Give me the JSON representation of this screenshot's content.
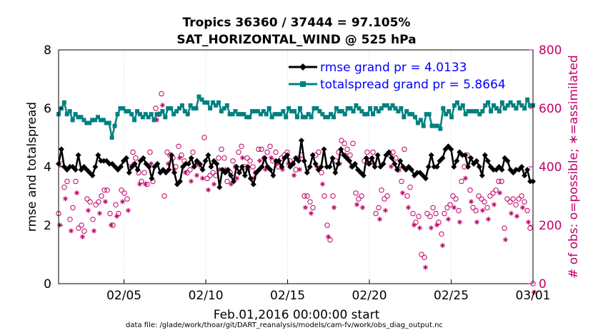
{
  "chart_data": {
    "type": "line",
    "title": "Tropics 36360 / 37444 = 97.105%",
    "subtitle": "SAT_HORIZONTAL_WIND @ 525 hPa",
    "xlabel": "Feb.01,2016 00:00:00 start",
    "ylabel_left": "rmse and totalspread",
    "ylabel_right": "# of obs: o=possible; ∗=assimilated",
    "footnote": "data file: /glade/work/thoar/git/DART_reanalysis/models/cam-fv/work/obs_diag_output.nc",
    "x_range_days": [
      1,
      30
    ],
    "x_ticks": [
      {
        "day": 5,
        "label": "02/05"
      },
      {
        "day": 10,
        "label": "02/10"
      },
      {
        "day": 15,
        "label": "02/15"
      },
      {
        "day": 20,
        "label": "02/20"
      },
      {
        "day": 25,
        "label": "02/25"
      },
      {
        "day": 30,
        "label": "03/01"
      }
    ],
    "ylim_left": [
      0,
      8
    ],
    "y_ticks_left": [
      0,
      2,
      4,
      6,
      8
    ],
    "ylim_right": [
      0,
      800
    ],
    "y_ticks_right": [
      0,
      200,
      400,
      600,
      800
    ],
    "legend_position": "top-right",
    "grid": "vertical dotted at x ticks",
    "colors": {
      "rmse": "#000000",
      "totalspread": "#008080",
      "obs": "#c0006a",
      "right_axis": "#c0006a"
    },
    "series": [
      {
        "name": "rmse grand pr = 4.0133",
        "axis": "left",
        "values": [
          4.1,
          4.6,
          4.0,
          3.9,
          4.0,
          4.0,
          3.9,
          4.4,
          3.9,
          4.0,
          3.9,
          3.8,
          3.7,
          4.0,
          4.4,
          4.2,
          4.2,
          4.2,
          4.1,
          4.1,
          4.0,
          3.9,
          4.0,
          4.2,
          4.3,
          3.8,
          4.0,
          4.1,
          3.9,
          4.2,
          4.3,
          4.1,
          4.0,
          3.6,
          4.0,
          4.1,
          3.8,
          3.9,
          3.8,
          3.9,
          4.4,
          3.8,
          3.4,
          3.5,
          4.0,
          4.1,
          4.1,
          4.3,
          4.0,
          4.2,
          4.1,
          3.9,
          4.2,
          4.4,
          4.0,
          4.2,
          4.1,
          3.3,
          3.9,
          3.8,
          3.9,
          3.7,
          3.5,
          4.0,
          3.8,
          4.0,
          3.7,
          4.0,
          3.6,
          3.4,
          3.8,
          3.9,
          4.0,
          4.3,
          4.0,
          3.9,
          3.7,
          4.2,
          4.2,
          4.0,
          4.3,
          4.4,
          4.0,
          4.1,
          4.3,
          4.2,
          4.9,
          4.2,
          3.8,
          4.0,
          4.4,
          4.1,
          3.9,
          4.0,
          4.6,
          4.0,
          4.0,
          4.3,
          3.8,
          4.1,
          4.6,
          4.4,
          4.3,
          4.2,
          4.0,
          4.1,
          3.9,
          3.8,
          3.7,
          4.3,
          4.1,
          4.3,
          4.0,
          4.4,
          4.0,
          4.1,
          4.4,
          4.5,
          4.3,
          4.1,
          3.9,
          4.2,
          4.0,
          3.9,
          4.0,
          3.9,
          3.7,
          3.8,
          3.8,
          3.7,
          3.6,
          4.0,
          4.4,
          4.0,
          4.0,
          4.2,
          4.3,
          4.6,
          4.7,
          4.6,
          4.0,
          4.2,
          4.5,
          4.4,
          4.4,
          4.0,
          4.3,
          4.1,
          4.2,
          4.0,
          3.7,
          4.4,
          4.2,
          4.0,
          3.9,
          3.9,
          4.0,
          3.9,
          4.3,
          4.2,
          3.9,
          3.8,
          3.9,
          3.9,
          4.0,
          3.7,
          3.9,
          3.5,
          3.5
        ]
      },
      {
        "name": "totalspread grand pr = 5.8664",
        "axis": "left",
        "values": [
          5.8,
          6.0,
          6.2,
          5.8,
          5.9,
          5.6,
          5.8,
          5.7,
          5.7,
          5.6,
          5.5,
          5.5,
          5.6,
          5.6,
          5.7,
          5.6,
          5.6,
          5.5,
          5.5,
          5.0,
          5.4,
          5.8,
          6.0,
          6.0,
          5.9,
          5.9,
          5.8,
          5.6,
          5.9,
          5.8,
          5.7,
          5.8,
          5.7,
          5.8,
          5.6,
          5.8,
          5.8,
          5.9,
          5.7,
          6.0,
          6.0,
          5.8,
          5.9,
          6.0,
          6.1,
          5.9,
          5.8,
          6.1,
          6.0,
          6.0,
          6.4,
          6.3,
          6.2,
          6.2,
          6.0,
          6.2,
          6.1,
          6.2,
          5.9,
          6.0,
          6.1,
          5.8,
          5.8,
          5.9,
          5.8,
          5.8,
          5.8,
          5.7,
          5.7,
          5.9,
          5.9,
          5.9,
          5.8,
          5.9,
          5.8,
          6.0,
          5.7,
          5.8,
          5.8,
          5.8,
          5.9,
          5.7,
          6.0,
          5.9,
          5.9,
          5.7,
          6.0,
          5.7,
          5.7,
          5.8,
          5.7,
          6.0,
          6.0,
          5.9,
          5.8,
          5.7,
          5.7,
          5.8,
          5.7,
          6.0,
          5.9,
          5.9,
          5.8,
          6.0,
          6.0,
          5.9,
          6.1,
          6.0,
          5.9,
          5.8,
          5.8,
          6.0,
          5.8,
          6.0,
          5.9,
          6.0,
          6.1,
          6.1,
          6.0,
          6.1,
          6.0,
          5.9,
          6.0,
          5.7,
          5.9,
          5.8,
          5.8,
          5.7,
          5.5,
          5.6,
          5.4,
          5.8,
          5.8,
          5.4,
          5.4,
          5.4,
          5.3,
          6.0,
          5.8,
          5.9,
          5.7,
          6.1,
          6.2,
          6.0,
          6.1,
          5.8,
          5.9,
          5.9,
          5.9,
          5.9,
          5.8,
          5.9,
          6.1,
          6.2,
          5.9,
          6.1,
          6.0,
          5.9,
          6.2,
          6.0,
          6.1,
          6.2,
          6.1,
          6.0,
          6.2,
          6.1,
          6.0,
          6.3,
          6.1,
          6.1
        ]
      },
      {
        "name": "possible",
        "axis": "right",
        "marker": "o",
        "values": [
          240,
          410,
          330,
          350,
          220,
          260,
          350,
          190,
          200,
          180,
          290,
          280,
          220,
          270,
          280,
          300,
          320,
          320,
          240,
          200,
          270,
          240,
          320,
          310,
          290,
          400,
          450,
          430,
          380,
          350,
          380,
          340,
          450,
          350,
          600,
          580,
          650,
          300,
          450,
          440,
          430,
          400,
          470,
          440,
          420,
          380,
          390,
          450,
          410,
          410,
          400,
          500,
          360,
          370,
          380,
          370,
          430,
          460,
          430,
          350,
          380,
          420,
          400,
          450,
          470,
          400,
          430,
          420,
          400,
          380,
          460,
          460,
          430,
          450,
          470,
          420,
          450,
          400,
          430,
          440,
          450,
          420,
          410,
          390,
          430,
          440,
          300,
          300,
          280,
          260,
          440,
          450,
          380,
          300,
          200,
          150,
          300,
          420,
          450,
          490,
          480,
          460,
          440,
          480,
          310,
          290,
          300,
          420,
          450,
          420,
          450,
          240,
          260,
          320,
          290,
          300,
          440,
          450,
          430,
          390,
          350,
          460,
          300,
          330,
          240,
          210,
          230,
          100,
          90,
          240,
          230,
          260,
          240,
          210,
          170,
          240,
          260,
          270,
          300,
          290,
          250,
          350,
          400,
          440,
          320,
          260,
          250,
          300,
          290,
          280,
          260,
          300,
          310,
          320,
          350,
          350,
          190,
          290,
          280,
          290,
          270,
          290,
          300,
          280,
          250,
          190,
          0
        ]
      },
      {
        "name": "assimilated",
        "axis": "right",
        "marker": "*",
        "values": [
          230,
          400,
          320,
          340,
          210,
          250,
          340,
          180,
          190,
          170,
          280,
          270,
          210,
          260,
          270,
          290,
          310,
          310,
          230,
          190,
          260,
          230,
          310,
          300,
          280,
          390,
          440,
          420,
          370,
          340,
          370,
          330,
          440,
          340,
          590,
          570,
          640,
          290,
          440,
          430,
          420,
          390,
          460,
          430,
          410,
          370,
          380,
          440,
          400,
          400,
          390,
          490,
          350,
          360,
          370,
          360,
          420,
          450,
          420,
          340,
          370,
          410,
          390,
          440,
          460,
          390,
          420,
          410,
          390,
          370,
          450,
          450,
          420,
          440,
          460,
          410,
          440,
          390,
          420,
          430,
          440,
          410,
          400,
          380,
          420,
          430,
          290,
          290,
          270,
          250,
          430,
          440,
          370,
          290,
          190,
          140,
          290,
          410,
          440,
          480,
          470,
          450,
          430,
          470,
          300,
          280,
          290,
          410,
          440,
          410,
          440,
          230,
          250,
          310,
          280,
          290,
          430,
          440,
          420,
          380,
          340,
          450,
          290,
          320,
          230,
          200,
          220,
          95,
          85,
          230,
          220,
          250,
          230,
          200,
          160,
          230,
          250,
          260,
          290,
          280,
          240,
          340,
          390,
          430,
          310,
          250,
          240,
          290,
          280,
          270,
          250,
          290,
          300,
          310,
          340,
          340,
          180,
          280,
          270,
          280,
          260,
          280,
          290,
          270,
          240,
          180,
          0
        ]
      }
    ]
  }
}
